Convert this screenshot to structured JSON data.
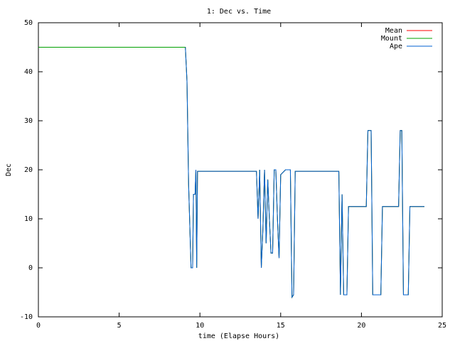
{
  "chart_data": {
    "type": "line",
    "title": "1: Dec vs. Time",
    "x_label": "time (Elapse Hours)",
    "y_label": "Dec",
    "x": [
      0,
      9.1,
      9.2,
      9.3,
      9.45,
      9.55,
      9.6,
      9.7,
      9.75,
      9.8,
      9.85,
      13.5,
      13.6,
      13.7,
      13.8,
      13.9,
      14.0,
      14.1,
      14.2,
      14.3,
      14.4,
      14.5,
      14.6,
      14.7,
      14.8,
      14.9,
      15.0,
      15.3,
      15.6,
      15.7,
      15.8,
      15.9,
      18.6,
      18.7,
      18.8,
      18.9,
      19.1,
      19.2,
      20.3,
      20.4,
      20.6,
      20.7,
      21.2,
      21.3,
      22.3,
      22.4,
      22.5,
      22.6,
      22.9,
      23.0,
      23.9
    ],
    "series": [
      {
        "name": "Mean",
        "color": "#ff0000",
        "values": [
          45,
          45,
          38,
          17,
          0,
          0,
          15,
          15,
          20,
          0,
          19.7,
          19.7,
          10,
          20,
          0,
          8,
          20,
          5,
          18,
          10,
          3,
          3,
          20,
          20,
          10,
          2,
          19,
          20,
          20,
          -6,
          -5.5,
          19.7,
          19.7,
          -5.5,
          15,
          -5.5,
          -5.5,
          12.5,
          12.5,
          28,
          28,
          -5.5,
          -5.5,
          12.5,
          12.5,
          28,
          28,
          -5.5,
          -5.5,
          12.5,
          12.5
        ]
      },
      {
        "name": "Mount",
        "color": "#00a000",
        "values": [
          45,
          45,
          38,
          17,
          0,
          0,
          15,
          15,
          20,
          0,
          19.7,
          19.7,
          10,
          20,
          0,
          8,
          20,
          5,
          18,
          10,
          3,
          3,
          20,
          20,
          10,
          2,
          19,
          20,
          20,
          -6,
          -5.5,
          19.7,
          19.7,
          -5.5,
          15,
          -5.5,
          -5.5,
          12.5,
          12.5,
          28,
          28,
          -5.5,
          -5.5,
          12.5,
          12.5,
          28,
          28,
          -5.5,
          -5.5,
          12.5,
          12.5
        ]
      },
      {
        "name": "Ape",
        "color": "#0060d0",
        "values": [
          null,
          45,
          38,
          17,
          0,
          0,
          15,
          15,
          20,
          0,
          19.7,
          19.7,
          10,
          20,
          0,
          8,
          20,
          5,
          18,
          10,
          3,
          3,
          20,
          20,
          10,
          2,
          19,
          20,
          20,
          -6,
          -5.5,
          19.7,
          19.7,
          -5.5,
          15,
          -5.5,
          -5.5,
          12.5,
          12.5,
          28,
          28,
          -5.5,
          -5.5,
          12.5,
          12.5,
          28,
          28,
          -5.5,
          -5.5,
          12.5,
          12.5
        ]
      }
    ],
    "xlim": [
      0,
      25
    ],
    "xticks": [
      0,
      5,
      10,
      15,
      20,
      25
    ],
    "ylim": [
      -10,
      50
    ],
    "yticks": [
      -10,
      0,
      10,
      20,
      30,
      40,
      50
    ],
    "grid": false,
    "legend": "top-right"
  }
}
